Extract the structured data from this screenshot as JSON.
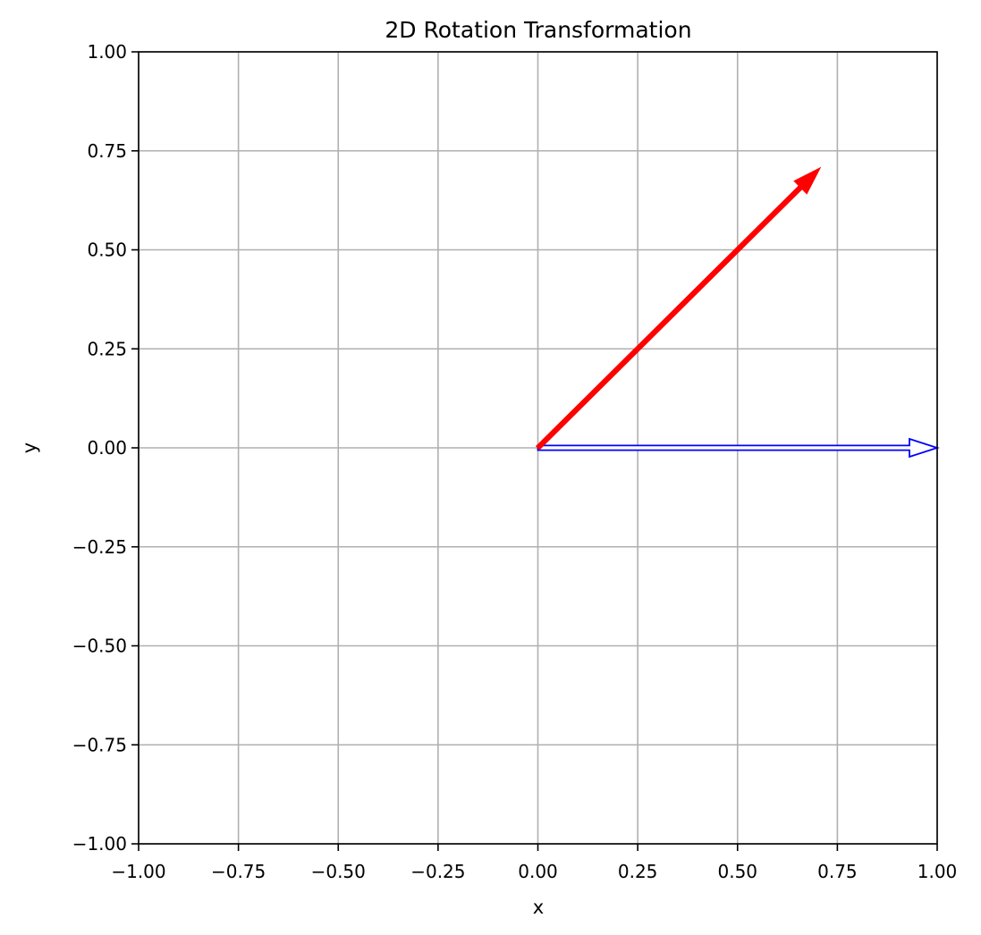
{
  "chart_data": {
    "type": "quiver",
    "title": "2D Rotation Transformation",
    "xlabel": "x",
    "ylabel": "y",
    "xlim": [
      -1.0,
      1.0
    ],
    "ylim": [
      -1.0,
      1.0
    ],
    "xticks": [
      "−1.00",
      "−0.75",
      "−0.50",
      "−0.25",
      "0.00",
      "0.25",
      "0.50",
      "0.75",
      "1.00"
    ],
    "yticks": [
      "−1.00",
      "−0.75",
      "−0.50",
      "−0.25",
      "0.00",
      "0.25",
      "0.50",
      "0.75",
      "1.00"
    ],
    "tick_values": [
      -1.0,
      -0.75,
      -0.5,
      -0.25,
      0.0,
      0.25,
      0.5,
      0.75,
      1.0
    ],
    "grid": true,
    "vectors": [
      {
        "origin": [
          0,
          0
        ],
        "end": [
          1.0,
          0.0
        ],
        "color": "#0000ff",
        "style": "hollow"
      },
      {
        "origin": [
          0,
          0
        ],
        "end": [
          0.707,
          0.707
        ],
        "color": "#ff0000",
        "style": "solid"
      }
    ]
  }
}
